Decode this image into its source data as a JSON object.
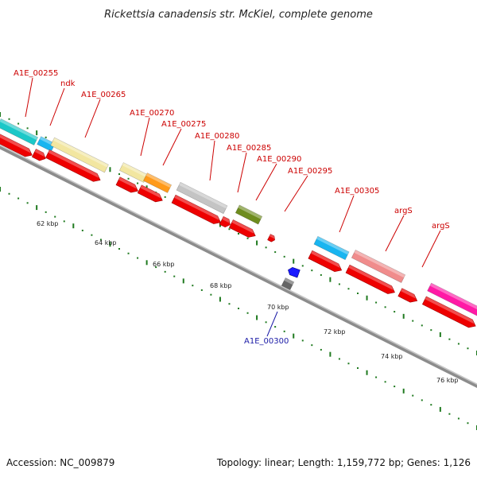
{
  "title": "Rickettsia canadensis str. McKiel, complete genome",
  "accession": "Accession: NC_009879",
  "topology": "Topology: linear; Length: 1,159,772 bp; Genes: 1,126",
  "colors": {
    "backbone": "#8c8c8c",
    "tick_green": "#1f7a1f",
    "label_red": "#cc0000",
    "label_blue": "#1a1aa6",
    "arrow_red": "#ee0000"
  },
  "scale_labels": [
    "62 kbp",
    "64 kbp",
    "66 kbp",
    "68 kbp",
    "70 kbp",
    "72 kbp",
    "74 kbp",
    "76 kbp"
  ],
  "feature_labels": [
    {
      "text": "A1E_00255",
      "strand": "top"
    },
    {
      "text": "ndk",
      "strand": "top"
    },
    {
      "text": "A1E_00265",
      "strand": "top"
    },
    {
      "text": "A1E_00270",
      "strand": "top"
    },
    {
      "text": "A1E_00275",
      "strand": "top"
    },
    {
      "text": "A1E_00280",
      "strand": "top"
    },
    {
      "text": "A1E_00285",
      "strand": "top"
    },
    {
      "text": "A1E_00290",
      "strand": "top"
    },
    {
      "text": "A1E_00295",
      "strand": "top"
    },
    {
      "text": "A1E_00305",
      "strand": "top"
    },
    {
      "text": "argS",
      "strand": "top"
    },
    {
      "text": "argS",
      "strand": "top"
    },
    {
      "text": "A1E_00300",
      "strand": "bottom"
    }
  ],
  "feature_colors": [
    "#1cc8c8",
    "#19b5f0",
    "#f2e6a0",
    "#f2e6a0",
    "#ff9a1a",
    "#c4c4c4",
    "#6e8c1e",
    "#1a1aff",
    "#19b5f0",
    "#f08c8c",
    "#ff1aa6",
    "#666666"
  ]
}
